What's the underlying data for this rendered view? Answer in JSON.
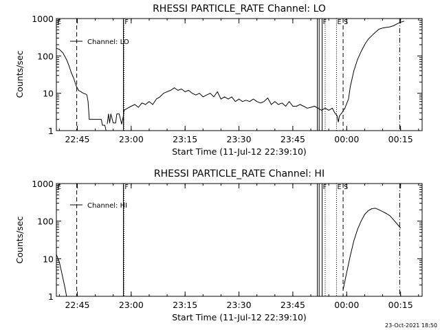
{
  "footer_timestamp": "23-Oct-2021 18:50",
  "colors": {
    "background": "#ffffff",
    "ink": "#000000"
  },
  "chart_data": [
    {
      "type": "line",
      "title": "RHESSI PARTICLE_RATE Channel: LO",
      "xlabel": "Start Time (11-Jul-12 22:39:10)",
      "ylabel": "Counts/sec",
      "y_scale": "log",
      "ylim": [
        1,
        1000
      ],
      "xlim": [
        "22:39:10",
        "00:21:00"
      ],
      "x_ticks": [
        "22:45",
        "23:00",
        "23:15",
        "23:30",
        "23:45",
        "00:00",
        "00:15"
      ],
      "y_ticks": [
        "1",
        "10",
        "100",
        "1000"
      ],
      "grid": false,
      "legend": {
        "position": "top-left",
        "entries": [
          "Channel: LO"
        ]
      },
      "markers": [
        {
          "time": "22:39:10",
          "style": "solid",
          "label": "E"
        },
        {
          "time": "22:44:50",
          "style": "dashed",
          "label": ""
        },
        {
          "time": "22:57:50",
          "style": "solid",
          "label": ""
        },
        {
          "time": "22:58:00",
          "style": "dotted",
          "label": "F"
        },
        {
          "time": "23:51:50",
          "style": "solid",
          "label": ""
        },
        {
          "time": "23:52:20",
          "style": "solid",
          "label": ""
        },
        {
          "time": "23:53:10",
          "style": "solid",
          "label": "F"
        },
        {
          "time": "23:54:00",
          "style": "dotted",
          "label": ""
        },
        {
          "time": "23:57:10",
          "style": "dotted",
          "label": "E"
        },
        {
          "time": "23:59:00",
          "style": "dashed",
          "label": "S"
        },
        {
          "time": "00:14:45",
          "style": "dashdot",
          "label": ""
        }
      ],
      "series": [
        {
          "name": "Channel: LO",
          "segments": [
            [
              [
                "22:39:10",
                160
              ],
              [
                "22:40:00",
                150
              ],
              [
                "22:41:00",
                120
              ],
              [
                "22:42:00",
                80
              ],
              [
                "22:42:40",
                55
              ],
              [
                "22:43:20",
                35
              ],
              [
                "22:44:00",
                25
              ],
              [
                "22:44:40",
                16
              ],
              [
                "22:45:20",
                12
              ],
              [
                "22:46:00",
                11
              ],
              [
                "22:46:40",
                10
              ],
              [
                "22:47:20",
                9.5
              ],
              [
                "22:47:40",
                9
              ],
              [
                "22:48:00",
                6
              ],
              [
                "22:48:20",
                2
              ],
              [
                "22:50:00",
                2
              ],
              [
                "22:51:40",
                2
              ],
              [
                "22:52:00",
                1.4
              ],
              [
                "22:52:40",
                1.4
              ],
              [
                "22:53:00",
                1
              ]
            ],
            [
              [
                "22:53:20",
                1.5
              ],
              [
                "22:53:40",
                2.8
              ],
              [
                "22:54:00",
                1.6
              ],
              [
                "22:54:20",
                2.8
              ],
              [
                "22:55:00",
                1.6
              ],
              [
                "22:55:40",
                1.6
              ],
              [
                "22:56:00",
                2.8
              ],
              [
                "22:56:40",
                2.8
              ],
              [
                "22:57:20",
                1.5
              ],
              [
                "22:57:50",
                2.5
              ],
              [
                "22:58:00",
                3.5
              ],
              [
                "22:59:00",
                4
              ],
              [
                "23:00:00",
                4.5
              ],
              [
                "23:01:00",
                5
              ],
              [
                "23:02:00",
                4.2
              ],
              [
                "23:03:00",
                5.5
              ],
              [
                "23:04:00",
                5
              ],
              [
                "23:05:00",
                6
              ],
              [
                "23:06:00",
                5
              ],
              [
                "23:07:00",
                7
              ],
              [
                "23:08:00",
                8
              ],
              [
                "23:09:00",
                10
              ],
              [
                "23:10:00",
                11
              ],
              [
                "23:11:00",
                12
              ],
              [
                "23:12:00",
                14
              ],
              [
                "23:13:00",
                12
              ],
              [
                "23:14:00",
                13
              ],
              [
                "23:15:00",
                11
              ],
              [
                "23:16:00",
                12
              ],
              [
                "23:17:00",
                10
              ],
              [
                "23:18:00",
                9
              ],
              [
                "23:19:00",
                10
              ],
              [
                "23:20:00",
                8
              ],
              [
                "23:21:00",
                9
              ],
              [
                "23:22:00",
                10
              ],
              [
                "23:23:00",
                8
              ],
              [
                "23:24:00",
                11
              ],
              [
                "23:25:00",
                7
              ],
              [
                "23:26:00",
                8
              ],
              [
                "23:27:00",
                7
              ],
              [
                "23:28:00",
                8
              ],
              [
                "23:29:00",
                6
              ],
              [
                "23:30:00",
                7
              ],
              [
                "23:31:00",
                6
              ],
              [
                "23:32:00",
                6.5
              ],
              [
                "23:33:00",
                6
              ],
              [
                "23:34:00",
                7
              ],
              [
                "23:35:00",
                6
              ],
              [
                "23:36:00",
                5.5
              ],
              [
                "23:37:00",
                6
              ],
              [
                "23:38:00",
                7.5
              ],
              [
                "23:39:00",
                5
              ],
              [
                "23:40:00",
                6
              ],
              [
                "23:41:00",
                5
              ],
              [
                "23:42:00",
                5.5
              ],
              [
                "23:43:00",
                4.5
              ],
              [
                "23:44:00",
                6
              ],
              [
                "23:45:00",
                4.5
              ],
              [
                "23:46:00",
                4.5
              ],
              [
                "23:47:00",
                5
              ],
              [
                "23:48:00",
                4.5
              ],
              [
                "23:49:00",
                4
              ],
              [
                "23:50:00",
                4.2
              ],
              [
                "23:51:00",
                4.5
              ],
              [
                "23:52:00",
                4
              ],
              [
                "23:53:00",
                3.5
              ],
              [
                "23:54:00",
                4
              ],
              [
                "23:55:00",
                3.5
              ],
              [
                "23:56:00",
                4
              ],
              [
                "23:56:40",
                3
              ],
              [
                "23:57:20",
                2.5
              ],
              [
                "23:57:40",
                1.7
              ],
              [
                "23:58:00",
                2.5
              ],
              [
                "23:58:40",
                3
              ],
              [
                "23:59:30",
                4
              ],
              [
                "00:00:30",
                7
              ],
              [
                "00:01:00",
                15
              ],
              [
                "00:02:00",
                40
              ],
              [
                "00:03:00",
                80
              ],
              [
                "00:04:00",
                130
              ],
              [
                "00:05:00",
                200
              ],
              [
                "00:06:00",
                280
              ],
              [
                "00:07:00",
                350
              ],
              [
                "00:08:00",
                430
              ],
              [
                "00:09:00",
                520
              ],
              [
                "00:10:00",
                560
              ],
              [
                "00:11:00",
                580
              ],
              [
                "00:12:00",
                600
              ],
              [
                "00:13:00",
                640
              ],
              [
                "00:14:00",
                720
              ],
              [
                "00:15:00",
                800
              ],
              [
                "00:16:00",
                850
              ]
            ]
          ]
        }
      ]
    },
    {
      "type": "line",
      "title": "RHESSI PARTICLE_RATE Channel: HI",
      "xlabel": "Start Time (11-Jul-12 22:39:10)",
      "ylabel": "Counts/sec",
      "y_scale": "log",
      "ylim": [
        1,
        1000
      ],
      "xlim": [
        "22:39:10",
        "00:21:00"
      ],
      "x_ticks": [
        "22:45",
        "23:00",
        "23:15",
        "23:30",
        "23:45",
        "00:00",
        "00:15"
      ],
      "y_ticks": [
        "1",
        "10",
        "100",
        "1000"
      ],
      "grid": false,
      "legend": {
        "position": "top-left",
        "entries": [
          "Channel: HI"
        ]
      },
      "markers": [
        {
          "time": "22:39:10",
          "style": "solid",
          "label": "E"
        },
        {
          "time": "22:44:50",
          "style": "dashed",
          "label": ""
        },
        {
          "time": "22:57:50",
          "style": "solid",
          "label": ""
        },
        {
          "time": "22:58:00",
          "style": "dotted",
          "label": "F"
        },
        {
          "time": "23:51:50",
          "style": "solid",
          "label": ""
        },
        {
          "time": "23:52:20",
          "style": "solid",
          "label": ""
        },
        {
          "time": "23:53:10",
          "style": "solid",
          "label": "F"
        },
        {
          "time": "23:54:00",
          "style": "dotted",
          "label": ""
        },
        {
          "time": "23:57:10",
          "style": "dotted",
          "label": "E"
        },
        {
          "time": "23:59:00",
          "style": "dashed",
          "label": "S"
        },
        {
          "time": "00:14:45",
          "style": "dashdot",
          "label": ""
        }
      ],
      "series": [
        {
          "name": "Channel: HI",
          "segments": [
            [
              [
                "22:39:10",
                13
              ],
              [
                "22:40:00",
                8
              ],
              [
                "22:41:00",
                3
              ],
              [
                "22:41:40",
                1.5
              ],
              [
                "22:42:00",
                1
              ]
            ],
            [
              [
                "23:59:00",
                1.5
              ],
              [
                "23:59:40",
                3
              ],
              [
                "00:00:20",
                6
              ],
              [
                "00:01:00",
                12
              ],
              [
                "00:02:00",
                30
              ],
              [
                "00:03:00",
                60
              ],
              [
                "00:04:00",
                100
              ],
              [
                "00:05:00",
                150
              ],
              [
                "00:06:00",
                190
              ],
              [
                "00:07:00",
                215
              ],
              [
                "00:08:00",
                220
              ],
              [
                "00:09:00",
                200
              ],
              [
                "00:10:00",
                180
              ],
              [
                "00:11:00",
                160
              ],
              [
                "00:12:00",
                140
              ],
              [
                "00:13:00",
                110
              ],
              [
                "00:14:00",
                85
              ],
              [
                "00:15:00",
                65
              ]
            ]
          ]
        }
      ]
    }
  ]
}
